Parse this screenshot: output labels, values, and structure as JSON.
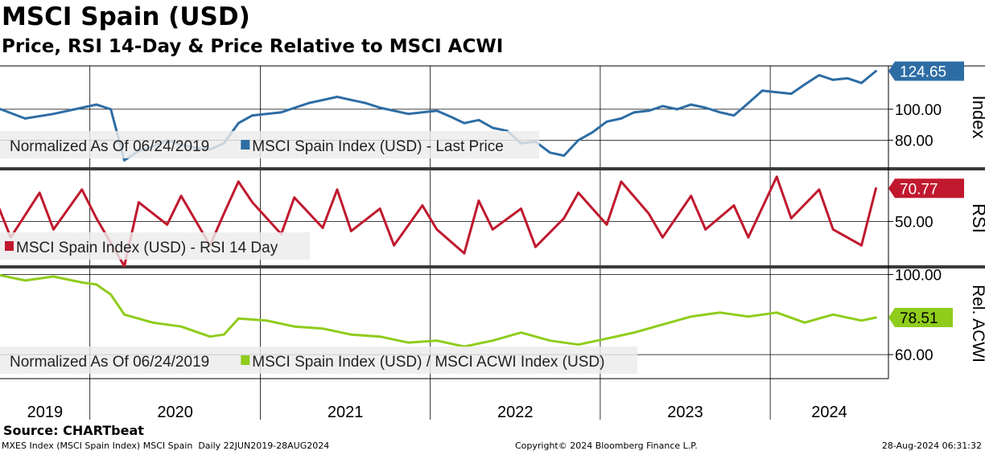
{
  "title": "MSCI Spain (USD)",
  "subtitle": "Price, RSI 14-Day & Price Relative to MSCI ACWI",
  "source": "Source: CHARTbeat",
  "footer": {
    "left": "MXES Index (MSCI Spain Index) MSCI Spain  Daily 22JUN2019-28AUG2024",
    "center": "Copyright© 2024 Bloomberg Finance L.P.",
    "right": "28-Aug-2024 06:31:32"
  },
  "colors": {
    "price": "#2e6da4",
    "rsi": "#c0192e",
    "relative": "#8fcc1c",
    "price_light": "#88a9cb",
    "rsi_light": "#d98a93",
    "relative_light": "#bde07a",
    "legend_bg": "#ebebeb",
    "panel_divider": "#3a3a3a"
  },
  "chart_data": [
    {
      "panel": "price",
      "type": "line",
      "ylabel": "Index",
      "legend": [
        "Normalized As Of 06/24/2019",
        "MSCI Spain Index (USD) - Last Price"
      ],
      "yticks": [
        80,
        100
      ],
      "tick_labels": [
        "80.00",
        "100.00"
      ],
      "last_value_label": "124.65",
      "ylim": [
        62,
        128
      ],
      "x": [
        "2019-06",
        "2019-08",
        "2019-10",
        "2019-12",
        "2020-01",
        "2020-02",
        "2020-03",
        "2020-04",
        "2020-05",
        "2020-06",
        "2020-07",
        "2020-08",
        "2020-09",
        "2020-10",
        "2020-11",
        "2020-12",
        "2021-02",
        "2021-04",
        "2021-06",
        "2021-07",
        "2021-08",
        "2021-09",
        "2021-11",
        "2022-01",
        "2022-02",
        "2022-03",
        "2022-04",
        "2022-05",
        "2022-06",
        "2022-07",
        "2022-08",
        "2022-09",
        "2022-10",
        "2022-11",
        "2022-12",
        "2023-01",
        "2023-02",
        "2023-03",
        "2023-04",
        "2023-05",
        "2023-06",
        "2023-07",
        "2023-08",
        "2023-09",
        "2023-10",
        "2023-11",
        "2023-12",
        "2024-01",
        "2024-02",
        "2024-03",
        "2024-04",
        "2024-05",
        "2024-06",
        "2024-07",
        "2024-08"
      ],
      "values": [
        101,
        94,
        97,
        101,
        103,
        100,
        67,
        73,
        76,
        80,
        77,
        75,
        74,
        78,
        91,
        96,
        98,
        104,
        108,
        106,
        104,
        101,
        97,
        99,
        95,
        91,
        93,
        88,
        86,
        78,
        79,
        72,
        70,
        80,
        85,
        92,
        94,
        98,
        99,
        102,
        100,
        103,
        101,
        98,
        96,
        104,
        112,
        111,
        110,
        116,
        122,
        119,
        120,
        117,
        124.65
      ]
    },
    {
      "panel": "rsi",
      "type": "line",
      "ylabel": "RSI",
      "legend": [
        "MSCI Spain Index (USD) - RSI 14 Day"
      ],
      "yticks": [
        50
      ],
      "tick_labels": [
        "50.00"
      ],
      "last_value_label": "70.77",
      "ylim": [
        22,
        82
      ],
      "x": [
        "2019-06",
        "2019-07",
        "2019-09",
        "2019-10",
        "2019-12",
        "2020-01",
        "2020-03",
        "2020-04",
        "2020-06",
        "2020-07",
        "2020-09",
        "2020-10",
        "2020-11",
        "2020-12",
        "2021-02",
        "2021-03",
        "2021-05",
        "2021-06",
        "2021-07",
        "2021-09",
        "2021-10",
        "2021-12",
        "2022-01",
        "2022-03",
        "2022-04",
        "2022-05",
        "2022-07",
        "2022-08",
        "2022-10",
        "2022-11",
        "2023-01",
        "2023-02",
        "2023-04",
        "2023-05",
        "2023-07",
        "2023-08",
        "2023-10",
        "2023-11",
        "2024-01",
        "2024-02",
        "2024-04",
        "2024-05",
        "2024-07",
        "2024-08"
      ],
      "values": [
        62,
        40,
        68,
        45,
        70,
        52,
        22,
        62,
        48,
        66,
        35,
        55,
        75,
        62,
        42,
        65,
        46,
        70,
        44,
        58,
        35,
        60,
        45,
        30,
        63,
        45,
        58,
        34,
        52,
        68,
        48,
        75,
        55,
        40,
        66,
        45,
        60,
        40,
        78,
        52,
        70,
        45,
        35,
        70.77
      ]
    },
    {
      "panel": "relative",
      "type": "line",
      "ylabel": "Rel. ACWI",
      "legend": [
        "Normalized As Of 06/24/2019",
        "MSCI Spain Index (USD) / MSCI ACWI Index (USD)"
      ],
      "yticks": [
        60,
        100
      ],
      "tick_labels": [
        "60.00",
        "100.00"
      ],
      "last_value_label": "78.51",
      "ylim": [
        48,
        103
      ],
      "x": [
        "2019-06",
        "2019-08",
        "2019-10",
        "2019-12",
        "2020-01",
        "2020-02",
        "2020-03",
        "2020-05",
        "2020-07",
        "2020-09",
        "2020-10",
        "2020-11",
        "2021-01",
        "2021-03",
        "2021-05",
        "2021-07",
        "2021-09",
        "2021-11",
        "2022-01",
        "2022-03",
        "2022-05",
        "2022-07",
        "2022-09",
        "2022-11",
        "2023-01",
        "2023-03",
        "2023-05",
        "2023-07",
        "2023-09",
        "2023-11",
        "2024-01",
        "2024-03",
        "2024-05",
        "2024-07",
        "2024-08"
      ],
      "values": [
        100,
        97,
        99,
        96,
        95,
        90,
        80,
        76,
        74,
        69,
        70,
        78,
        77,
        74,
        73,
        70,
        69,
        66,
        67,
        64,
        67,
        71,
        67,
        65,
        68,
        71,
        75,
        79,
        81,
        79,
        81,
        76,
        80,
        77,
        78.51
      ]
    }
  ],
  "x_axis": {
    "years": [
      "2019",
      "2020",
      "2021",
      "2022",
      "2023",
      "2024"
    ],
    "start": "2019-06-22",
    "end": "2024-08-28"
  }
}
